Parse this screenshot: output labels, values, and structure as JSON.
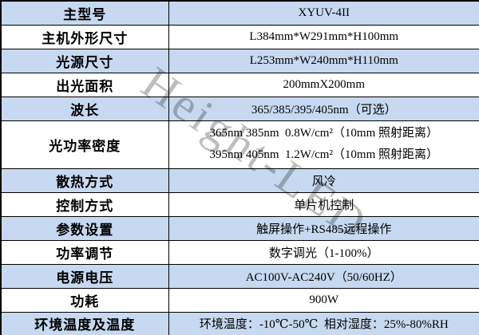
{
  "watermark": "Height-LED",
  "colors": {
    "shaded_row_bg": "#c7d9f0",
    "plain_row_bg": "#ffffff",
    "border": "#000000",
    "text": "#000000",
    "watermark": "#bdbdbd"
  },
  "table": {
    "rows": [
      {
        "label": "主型号",
        "value": "XYUV-4II",
        "shaded": true
      },
      {
        "label": "主机外形尺寸",
        "value": "L384mm*W291mm*H100mm",
        "shaded": false
      },
      {
        "label": "光源尺寸",
        "value": "L253mm*W240mm*H110mm",
        "shaded": true
      },
      {
        "label": "出光面积",
        "value": "200mmX200mm",
        "shaded": false
      },
      {
        "label": "波长",
        "value": "365/385/395/405nm（可选）",
        "shaded": true
      },
      {
        "label": "光功率密度",
        "lines": [
          "365nm 385nm  0.8W/cm²（10mm 照射距离）",
          "395nm 405nm  1.2W/cm²（10mm 照射距离）"
        ],
        "shaded": false
      },
      {
        "label": "散热方式",
        "value": "风冷",
        "shaded": true
      },
      {
        "label": "控制方式",
        "value": "单片机控制",
        "shaded": false
      },
      {
        "label": "参数设置",
        "value": "触屏操作+RS485远程操作",
        "shaded": true
      },
      {
        "label": "功率调节",
        "value": "数字调光（1-100%）",
        "shaded": false
      },
      {
        "label": "电源电压",
        "value": "AC100V-AC240V（50/60HZ）",
        "shaded": true
      },
      {
        "label": "功耗",
        "value": "900W",
        "shaded": false
      },
      {
        "label": "环境温度及温度",
        "value": "环境温度：-10℃-50℃  相对湿度：25%-80%RH",
        "shaded": true
      }
    ]
  }
}
